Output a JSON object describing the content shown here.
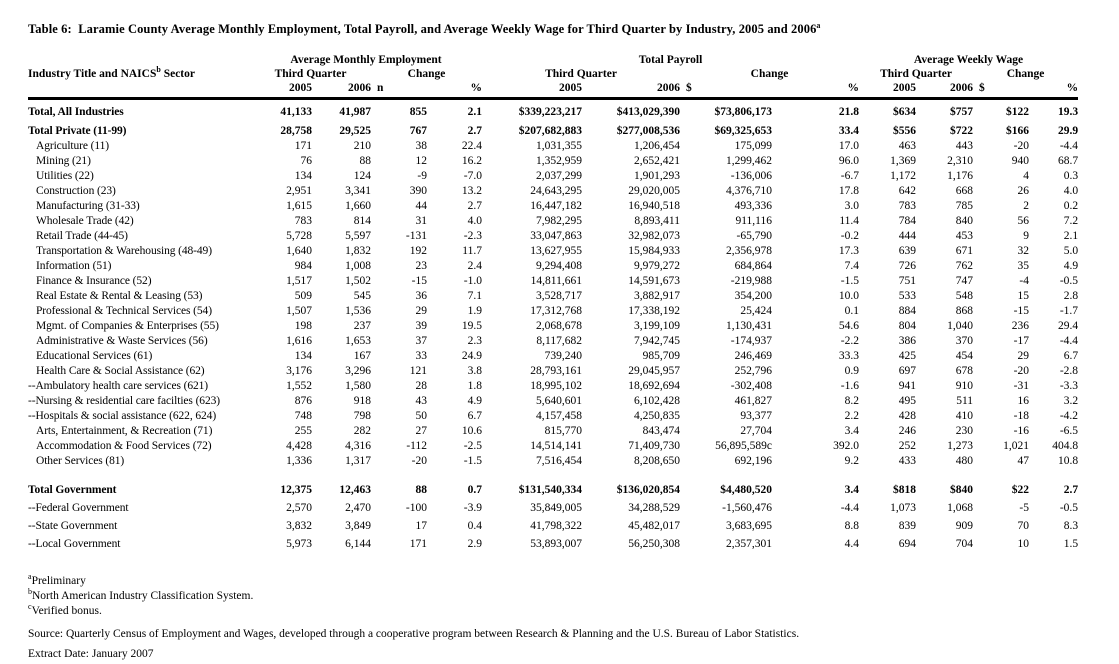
{
  "title": {
    "text": "Table 6:  Laramie County Average Monthly Employment, Total Payroll, and Average Weekly Wage for Third Quarter by Industry, 2005 and 2006",
    "superscript": "a"
  },
  "table": {
    "col1_header": {
      "pre": "Industry Title and NAICS",
      "sup": "b",
      "post": " Sector"
    },
    "groups": [
      {
        "label": "Average Monthly Employment"
      },
      {
        "label": "Total Payroll"
      },
      {
        "label": "Average Weekly Wage"
      }
    ],
    "subheaders": {
      "third_quarter": "Third Quarter",
      "change": "Change"
    },
    "col_headers": {
      "employment": [
        "2005",
        "2006",
        "n",
        "%"
      ],
      "payroll": [
        "2005",
        "2006",
        "$",
        "%"
      ],
      "wage": [
        "2005",
        "2006",
        "$",
        "%"
      ]
    },
    "rows": [
      {
        "label": "Total, All Industries",
        "bold": true,
        "indent": 0,
        "gap": "none",
        "values": [
          "41,133",
          "41,987",
          "855",
          "2.1",
          "$339,223,217",
          "$413,029,390",
          "$73,806,173",
          "21.8",
          "$634",
          "$757",
          "$122",
          "19.3"
        ]
      },
      {
        "label": "Total Private (11-99)",
        "bold": true,
        "indent": 0,
        "gap": "xs",
        "values": [
          "28,758",
          "29,525",
          "767",
          "2.7",
          "$207,682,883",
          "$277,008,536",
          "$69,325,653",
          "33.4",
          "$556",
          "$722",
          "$166",
          "29.9"
        ]
      },
      {
        "label": "Agriculture (11)",
        "bold": false,
        "indent": 1,
        "gap": "none",
        "values": [
          "171",
          "210",
          "38",
          "22.4",
          "1,031,355",
          "1,206,454",
          "175,099",
          "17.0",
          "463",
          "443",
          "-20",
          "-4.4"
        ]
      },
      {
        "label": "Mining (21)",
        "bold": false,
        "indent": 1,
        "gap": "none",
        "values": [
          "76",
          "88",
          "12",
          "16.2",
          "1,352,959",
          "2,652,421",
          "1,299,462",
          "96.0",
          "1,369",
          "2,310",
          "940",
          "68.7"
        ]
      },
      {
        "label": "Utilities (22)",
        "bold": false,
        "indent": 1,
        "gap": "none",
        "values": [
          "134",
          "124",
          "-9",
          "-7.0",
          "2,037,299",
          "1,901,293",
          "-136,006",
          "-6.7",
          "1,172",
          "1,176",
          "4",
          "0.3"
        ]
      },
      {
        "label": "Construction (23)",
        "bold": false,
        "indent": 1,
        "gap": "none",
        "values": [
          "2,951",
          "3,341",
          "390",
          "13.2",
          "24,643,295",
          "29,020,005",
          "4,376,710",
          "17.8",
          "642",
          "668",
          "26",
          "4.0"
        ]
      },
      {
        "label": "Manufacturing (31-33)",
        "bold": false,
        "indent": 1,
        "gap": "none",
        "values": [
          "1,615",
          "1,660",
          "44",
          "2.7",
          "16,447,182",
          "16,940,518",
          "493,336",
          "3.0",
          "783",
          "785",
          "2",
          "0.2"
        ]
      },
      {
        "label": "Wholesale Trade (42)",
        "bold": false,
        "indent": 1,
        "gap": "none",
        "values": [
          "783",
          "814",
          "31",
          "4.0",
          "7,982,295",
          "8,893,411",
          "911,116",
          "11.4",
          "784",
          "840",
          "56",
          "7.2"
        ]
      },
      {
        "label": "Retail Trade (44-45)",
        "bold": false,
        "indent": 1,
        "gap": "none",
        "values": [
          "5,728",
          "5,597",
          "-131",
          "-2.3",
          "33,047,863",
          "32,982,073",
          "-65,790",
          "-0.2",
          "444",
          "453",
          "9",
          "2.1"
        ]
      },
      {
        "label": "Transportation & Warehousing (48-49)",
        "bold": false,
        "indent": 1,
        "gap": "none",
        "values": [
          "1,640",
          "1,832",
          "192",
          "11.7",
          "13,627,955",
          "15,984,933",
          "2,356,978",
          "17.3",
          "639",
          "671",
          "32",
          "5.0"
        ]
      },
      {
        "label": "Information (51)",
        "bold": false,
        "indent": 1,
        "gap": "none",
        "values": [
          "984",
          "1,008",
          "23",
          "2.4",
          "9,294,408",
          "9,979,272",
          "684,864",
          "7.4",
          "726",
          "762",
          "35",
          "4.9"
        ]
      },
      {
        "label": "Finance & Insurance (52)",
        "bold": false,
        "indent": 1,
        "gap": "none",
        "values": [
          "1,517",
          "1,502",
          "-15",
          "-1.0",
          "14,811,661",
          "14,591,673",
          "-219,988",
          "-1.5",
          "751",
          "747",
          "-4",
          "-0.5"
        ]
      },
      {
        "label": "Real Estate & Rental & Leasing (53)",
        "bold": false,
        "indent": 1,
        "gap": "none",
        "values": [
          "509",
          "545",
          "36",
          "7.1",
          "3,528,717",
          "3,882,917",
          "354,200",
          "10.0",
          "533",
          "548",
          "15",
          "2.8"
        ]
      },
      {
        "label": "Professional & Technical Services (54)",
        "bold": false,
        "indent": 1,
        "gap": "none",
        "values": [
          "1,507",
          "1,536",
          "29",
          "1.9",
          "17,312,768",
          "17,338,192",
          "25,424",
          "0.1",
          "884",
          "868",
          "-15",
          "-1.7"
        ]
      },
      {
        "label": "Mgmt. of Companies & Enterprises (55)",
        "bold": false,
        "indent": 1,
        "gap": "none",
        "values": [
          "198",
          "237",
          "39",
          "19.5",
          "2,068,678",
          "3,199,109",
          "1,130,431",
          "54.6",
          "804",
          "1,040",
          "236",
          "29.4"
        ]
      },
      {
        "label": "Administrative & Waste Services (56)",
        "bold": false,
        "indent": 1,
        "gap": "none",
        "values": [
          "1,616",
          "1,653",
          "37",
          "2.3",
          "8,117,682",
          "7,942,745",
          "-174,937",
          "-2.2",
          "386",
          "370",
          "-17",
          "-4.4"
        ]
      },
      {
        "label": "Educational Services (61)",
        "bold": false,
        "indent": 1,
        "gap": "none",
        "values": [
          "134",
          "167",
          "33",
          "24.9",
          "739,240",
          "985,709",
          "246,469",
          "33.3",
          "425",
          "454",
          "29",
          "6.7"
        ]
      },
      {
        "label": "Health Care & Social Assistance (62)",
        "bold": false,
        "indent": 1,
        "gap": "none",
        "values": [
          "3,176",
          "3,296",
          "121",
          "3.8",
          "28,793,161",
          "29,045,957",
          "252,796",
          "0.9",
          "697",
          "678",
          "-20",
          "-2.8"
        ]
      },
      {
        "label": "--Ambulatory health care services (621)",
        "bold": false,
        "indent": 0,
        "gap": "none",
        "values": [
          "1,552",
          "1,580",
          "28",
          "1.8",
          "18,995,102",
          "18,692,694",
          "-302,408",
          "-1.6",
          "941",
          "910",
          "-31",
          "-3.3"
        ]
      },
      {
        "label": "--Nursing & residential care facilties (623)",
        "bold": false,
        "indent": 0,
        "gap": "none",
        "values": [
          "876",
          "918",
          "43",
          "4.9",
          "5,640,601",
          "6,102,428",
          "461,827",
          "8.2",
          "495",
          "511",
          "16",
          "3.2"
        ]
      },
      {
        "label": "--Hospitals & social assistance (622, 624)",
        "bold": false,
        "indent": 0,
        "gap": "none",
        "values": [
          "748",
          "798",
          "50",
          "6.7",
          "4,157,458",
          "4,250,835",
          "93,377",
          "2.2",
          "428",
          "410",
          "-18",
          "-4.2"
        ]
      },
      {
        "label": "Arts, Entertainment, & Recreation (71)",
        "bold": false,
        "indent": 1,
        "gap": "none",
        "values": [
          "255",
          "282",
          "27",
          "10.6",
          "815,770",
          "843,474",
          "27,704",
          "3.4",
          "246",
          "230",
          "-16",
          "-6.5"
        ]
      },
      {
        "label": "Accommodation & Food Services (72)",
        "bold": false,
        "indent": 1,
        "gap": "none",
        "values": [
          "4,428",
          "4,316",
          "-112",
          "-2.5",
          "14,514,141",
          "71,409,730",
          "56,895,589c",
          "392.0",
          "252",
          "1,273",
          "1,021",
          "404.8"
        ]
      },
      {
        "label": "Other Services  (81)",
        "bold": false,
        "indent": 1,
        "gap": "none",
        "values": [
          "1,336",
          "1,317",
          "-20",
          "-1.5",
          "7,516,454",
          "8,208,650",
          "692,196",
          "9.2",
          "433",
          "480",
          "47",
          "10.8"
        ]
      },
      {
        "label": "Total Government",
        "bold": true,
        "indent": 0,
        "gap": "lg",
        "values": [
          "12,375",
          "12,463",
          "88",
          "0.7",
          "$131,540,334",
          "$136,020,854",
          "$4,480,520",
          "3.4",
          "$818",
          "$840",
          "$22",
          "2.7"
        ]
      },
      {
        "label": "--Federal Government",
        "bold": false,
        "indent": 0,
        "gap": "sm",
        "values": [
          "2,570",
          "2,470",
          "-100",
          "-3.9",
          "35,849,005",
          "34,288,529",
          "-1,560,476",
          "-4.4",
          "1,073",
          "1,068",
          "-5",
          "-0.5"
        ]
      },
      {
        "label": "--State Government",
        "bold": false,
        "indent": 0,
        "gap": "sm",
        "values": [
          "3,832",
          "3,849",
          "17",
          "0.4",
          "41,798,322",
          "45,482,017",
          "3,683,695",
          "8.8",
          "839",
          "909",
          "70",
          "8.3"
        ]
      },
      {
        "label": "--Local Government",
        "bold": false,
        "indent": 0,
        "gap": "sm",
        "values": [
          "5,973",
          "6,144",
          "171",
          "2.9",
          "53,893,007",
          "56,250,308",
          "2,357,301",
          "4.4",
          "694",
          "704",
          "10",
          "1.5"
        ]
      }
    ]
  },
  "footnotes": [
    {
      "marker": "a",
      "text": "Preliminary"
    },
    {
      "marker": "b",
      "text": "North American Industry Classification System."
    },
    {
      "marker": "c",
      "text": "Verified bonus."
    }
  ],
  "source_line": "Source: Quarterly Census of Employment and Wages, developed through a cooperative program between Research & Planning and the U.S. Bureau of Labor Statistics.",
  "extract_line": "Extract Date: January 2007"
}
